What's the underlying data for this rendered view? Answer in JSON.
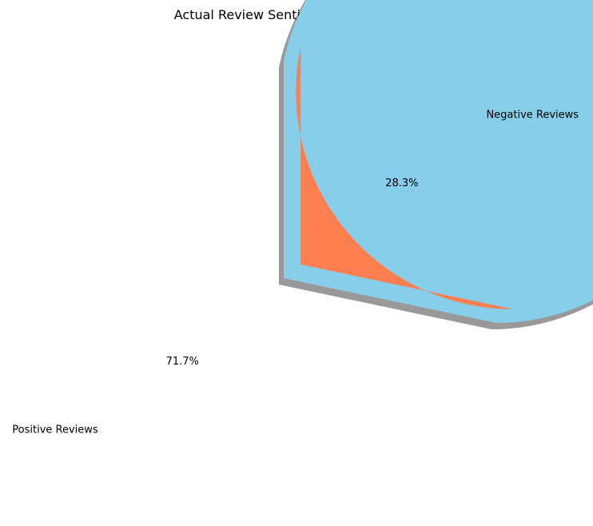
{
  "chart_data": {
    "type": "pie",
    "title": "Actual Review Sentiment Distribution",
    "slices": [
      {
        "label": "Positive Reviews",
        "value": 71.7,
        "pct_label": "71.7%",
        "color": "#87CEEB",
        "explode": 0
      },
      {
        "label": "Negative Reviews",
        "value": 28.3,
        "pct_label": "28.3%",
        "color": "#FF7F50",
        "explode": 0.1
      }
    ],
    "start_angle_deg": 90,
    "shadow": true
  }
}
